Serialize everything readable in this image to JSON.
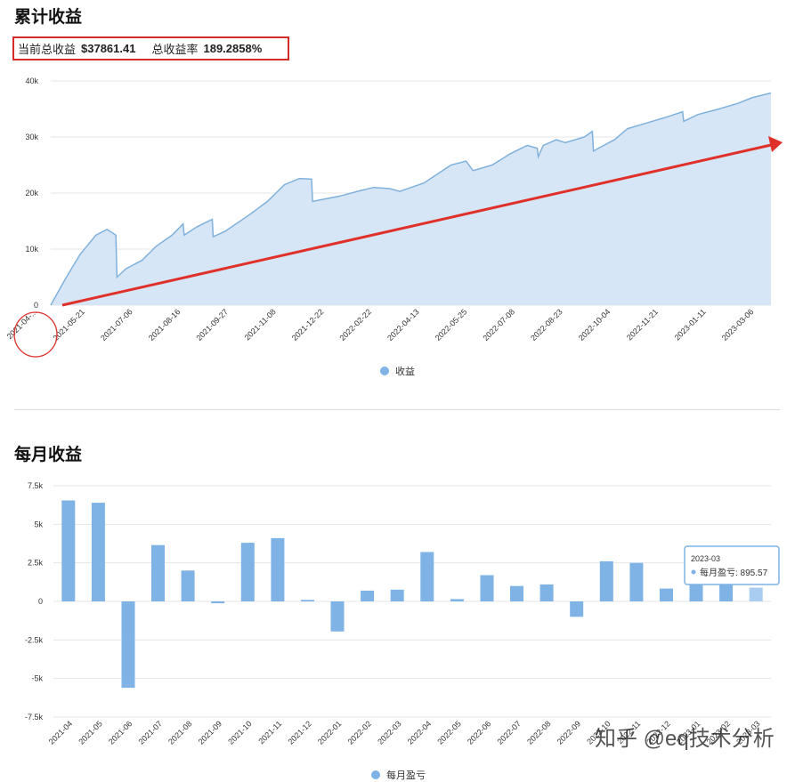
{
  "section1": {
    "title": "累计收益",
    "current_label": "当前总收益",
    "current_value": "$37861.41",
    "rate_label": "总收益率",
    "rate_value": "189.2858%"
  },
  "section2": {
    "title": "每月收益"
  },
  "tooltip": {
    "date": "2023-03",
    "label": "每月盈亏: 895.57"
  },
  "watermark": "知乎 @eq技术分析",
  "colors": {
    "area_fill": "#d6e6f6",
    "line": "#7fb1dc",
    "bar": "#7fb3e6",
    "bar_highlight": "#a9cdf0",
    "annotation": "#e0302a"
  },
  "chart_data": [
    {
      "type": "area",
      "series": [
        {
          "name": "收益"
        }
      ],
      "ylim": [
        0,
        40000
      ],
      "yticks": [
        0,
        10000,
        20000,
        30000,
        40000
      ],
      "ytick_labels": [
        "0",
        "10k",
        "20k",
        "30k",
        "40k"
      ],
      "xticks": [
        "2021-04-...",
        "2021-05-21",
        "2021-07-06",
        "2021-08-16",
        "2021-09-27",
        "2021-11-08",
        "2021-12-22",
        "2022-02-22",
        "2022-04-13",
        "2022-05-25",
        "2022-07-08",
        "2022-08-23",
        "2022-10-04",
        "2022-11-21",
        "2023-01-11",
        "2023-03-06"
      ],
      "x": [
        "2021-04-06",
        "2021-04-20",
        "2021-05-05",
        "2021-05-21",
        "2021-06-01",
        "2021-06-10",
        "2021-06-11",
        "2021-06-20",
        "2021-07-06",
        "2021-07-20",
        "2021-08-05",
        "2021-08-16",
        "2021-08-17",
        "2021-08-30",
        "2021-09-14",
        "2021-09-15",
        "2021-09-27",
        "2021-10-20",
        "2021-11-08",
        "2021-11-25",
        "2021-12-10",
        "2021-12-22",
        "2021-12-23",
        "2022-01-20",
        "2022-02-10",
        "2022-02-22",
        "2022-03-10",
        "2022-03-20",
        "2022-04-13",
        "2022-05-10",
        "2022-05-25",
        "2022-06-01",
        "2022-06-20",
        "2022-07-08",
        "2022-07-25",
        "2022-08-04",
        "2022-08-05",
        "2022-08-10",
        "2022-08-23",
        "2022-09-01",
        "2022-09-20",
        "2022-09-28",
        "2022-09-29",
        "2022-10-04",
        "2022-10-20",
        "2022-11-02",
        "2022-11-21",
        "2022-12-10",
        "2022-12-27",
        "2022-12-28",
        "2023-01-11",
        "2023-02-01",
        "2023-02-20",
        "2023-03-06",
        "2023-03-25"
      ],
      "y": [
        0,
        4500,
        9000,
        12500,
        13500,
        12500,
        5000,
        6500,
        8000,
        10500,
        12500,
        14500,
        12500,
        14000,
        15300,
        12200,
        13200,
        16000,
        18500,
        21500,
        22600,
        22500,
        18500,
        19500,
        20500,
        21000,
        20800,
        20300,
        21800,
        25000,
        25700,
        24000,
        25000,
        27000,
        28500,
        28000,
        26500,
        28500,
        29500,
        29000,
        30000,
        31000,
        27500,
        28000,
        29500,
        31500,
        32500,
        33500,
        34500,
        32800,
        34000,
        35000,
        36000,
        37000,
        37861.41
      ],
      "legend": "bottom-center"
    },
    {
      "type": "bar",
      "series": [
        {
          "name": "每月盈亏"
        }
      ],
      "categories": [
        "2021-04",
        "2021-05",
        "2021-06",
        "2021-07",
        "2021-08",
        "2021-09",
        "2021-10",
        "2021-11",
        "2021-12",
        "2022-01",
        "2022-02",
        "2022-03",
        "2022-04",
        "2022-05",
        "2022-06",
        "2022-07",
        "2022-08",
        "2022-09",
        "2022-10",
        "2022-11",
        "2022-12",
        "2023-01",
        "2023-02",
        "2023-03"
      ],
      "values": [
        6550,
        6400,
        -5600,
        3650,
        2000,
        -120,
        3800,
        4100,
        100,
        -1950,
        700,
        760,
        3200,
        150,
        1700,
        1000,
        1100,
        -1000,
        2600,
        2500,
        830,
        1400,
        1400,
        895.57
      ],
      "ylim": [
        -7500,
        7500
      ],
      "yticks": [
        -7500,
        -5000,
        -2500,
        0,
        2500,
        5000,
        7500
      ],
      "ytick_labels": [
        "-7.5k",
        "-5k",
        "-2.5k",
        "0",
        "2.5k",
        "5k",
        "7.5k"
      ],
      "legend": "bottom-center"
    }
  ]
}
